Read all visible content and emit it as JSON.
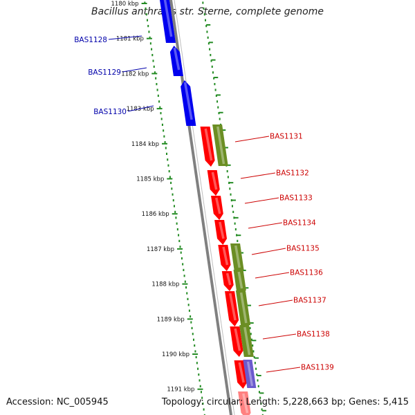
{
  "title": "Bacillus anthracis str. Sterne, complete genome",
  "accession": "Accession: NC_005945",
  "summary": "Topology: circular; Length: 5,228,663 bp; Genes: 5,415",
  "colors": {
    "forward_cds": "#ff0000",
    "reverse_cds": "#0000ee",
    "forward_feature": "#6b8e23",
    "orf_purple": "#6a5acd",
    "backbone": "#808080",
    "ruler": "#228b22",
    "forward_label": "#cc0000",
    "reverse_label": "#0000aa"
  },
  "ruler_ticks": [
    "1180 kbp",
    "1181 kbp",
    "1182 kbp",
    "1183 kbp",
    "1184 kbp",
    "1185 kbp",
    "1186 kbp",
    "1187 kbp",
    "1188 kbp",
    "1189 kbp",
    "1190 kbp",
    "1191 kbp"
  ],
  "reverse_genes": [
    "BAS1128",
    "BAS1129",
    "BAS1130"
  ],
  "forward_genes": [
    "BAS1131",
    "BAS1132",
    "BAS1133",
    "BAS1134",
    "BAS1135",
    "BAS1136",
    "BAS1137",
    "BAS1138",
    "BAS1139"
  ]
}
